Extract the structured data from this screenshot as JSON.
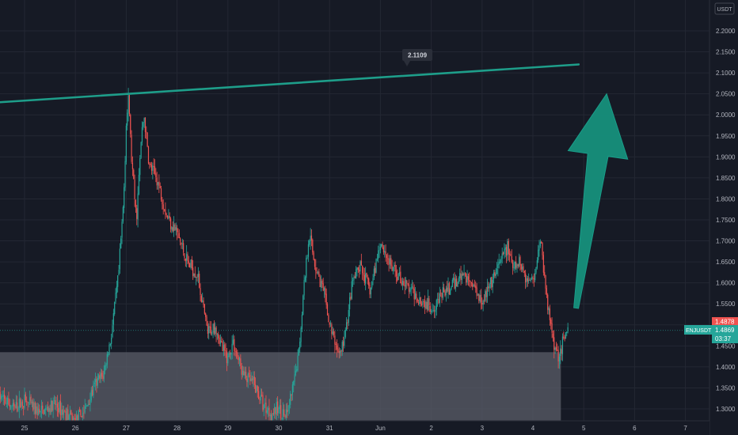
{
  "chart_data": {
    "type": "candlestick",
    "symbol": "ENJUSDT",
    "currency": "USDT",
    "colors": {
      "background": "#161a25",
      "grid": "#232733",
      "up": "#26a69a",
      "down": "#ef5350",
      "trendline": "#1e9e8a",
      "arrow": "#16907c",
      "zone": "#5d606b"
    },
    "ylim": [
      1.27,
      2.23
    ],
    "y_ticks": [
      "2.2000",
      "2.1500",
      "2.1000",
      "2.0500",
      "2.0000",
      "1.9500",
      "1.9000",
      "1.8500",
      "1.8000",
      "1.7500",
      "1.7000",
      "1.6500",
      "1.6000",
      "1.5500",
      "1.5000",
      "1.4500",
      "1.4000",
      "1.3500",
      "1.3000"
    ],
    "x_ticks": [
      "25",
      "26",
      "27",
      "28",
      "29",
      "30",
      "31",
      "Jun",
      "2",
      "3",
      "4",
      "5",
      "6",
      "7"
    ],
    "price_path": [
      [
        24.5,
        1.33
      ],
      [
        24.8,
        1.3
      ],
      [
        25.0,
        1.32
      ],
      [
        25.3,
        1.29
      ],
      [
        25.6,
        1.31
      ],
      [
        26.0,
        1.27
      ],
      [
        26.2,
        1.3
      ],
      [
        26.4,
        1.36
      ],
      [
        26.55,
        1.38
      ],
      [
        26.7,
        1.47
      ],
      [
        26.85,
        1.62
      ],
      [
        26.95,
        1.8
      ],
      [
        27.0,
        1.98
      ],
      [
        27.05,
        2.04
      ],
      [
        27.1,
        1.9
      ],
      [
        27.2,
        1.75
      ],
      [
        27.3,
        1.95
      ],
      [
        27.35,
        2.0
      ],
      [
        27.45,
        1.88
      ],
      [
        27.6,
        1.85
      ],
      [
        27.8,
        1.76
      ],
      [
        28.0,
        1.72
      ],
      [
        28.2,
        1.65
      ],
      [
        28.4,
        1.62
      ],
      [
        28.5,
        1.55
      ],
      [
        28.6,
        1.48
      ],
      [
        28.75,
        1.5
      ],
      [
        28.9,
        1.44
      ],
      [
        29.0,
        1.42
      ],
      [
        29.1,
        1.46
      ],
      [
        29.3,
        1.38
      ],
      [
        29.5,
        1.36
      ],
      [
        29.7,
        1.31
      ],
      [
        29.85,
        1.29
      ],
      [
        30.0,
        1.3
      ],
      [
        30.15,
        1.28
      ],
      [
        30.3,
        1.36
      ],
      [
        30.4,
        1.44
      ],
      [
        30.5,
        1.6
      ],
      [
        30.6,
        1.72
      ],
      [
        30.7,
        1.65
      ],
      [
        30.8,
        1.61
      ],
      [
        30.9,
        1.57
      ],
      [
        31.0,
        1.5
      ],
      [
        31.1,
        1.46
      ],
      [
        31.2,
        1.43
      ],
      [
        31.3,
        1.47
      ],
      [
        31.45,
        1.6
      ],
      [
        31.6,
        1.64
      ],
      [
        31.8,
        1.58
      ],
      [
        32.0,
        1.7
      ],
      [
        32.2,
        1.64
      ],
      [
        32.4,
        1.61
      ],
      [
        32.6,
        1.58
      ],
      [
        32.8,
        1.56
      ],
      [
        33.0,
        1.54
      ],
      [
        33.2,
        1.57
      ],
      [
        33.4,
        1.59
      ],
      [
        33.6,
        1.62
      ],
      [
        33.8,
        1.6
      ],
      [
        34.0,
        1.56
      ],
      [
        34.2,
        1.6
      ],
      [
        34.4,
        1.66
      ],
      [
        34.5,
        1.69
      ],
      [
        34.6,
        1.63
      ],
      [
        34.75,
        1.65
      ],
      [
        34.9,
        1.6
      ],
      [
        35.05,
        1.63
      ],
      [
        35.15,
        1.71
      ],
      [
        35.25,
        1.58
      ],
      [
        35.35,
        1.5
      ],
      [
        35.45,
        1.44
      ],
      [
        35.5,
        1.43
      ],
      [
        35.6,
        1.46
      ],
      [
        35.7,
        1.49
      ]
    ],
    "last_close_price": "1.4878",
    "current_price": "1.4869",
    "countdown": "03:37",
    "annotations": [
      {
        "type": "trendline",
        "label": "2.1109",
        "from": [
          24.0,
          2.026
        ],
        "to": [
          35.9,
          2.12
        ]
      },
      {
        "type": "arrow",
        "direction": "up",
        "from": [
          35.85,
          1.54
        ],
        "to": [
          36.45,
          2.05
        ]
      },
      {
        "type": "zone",
        "y_from": 1.27,
        "y_to": 1.435,
        "x_from": 24.0,
        "x_to": 35.55
      }
    ]
  }
}
